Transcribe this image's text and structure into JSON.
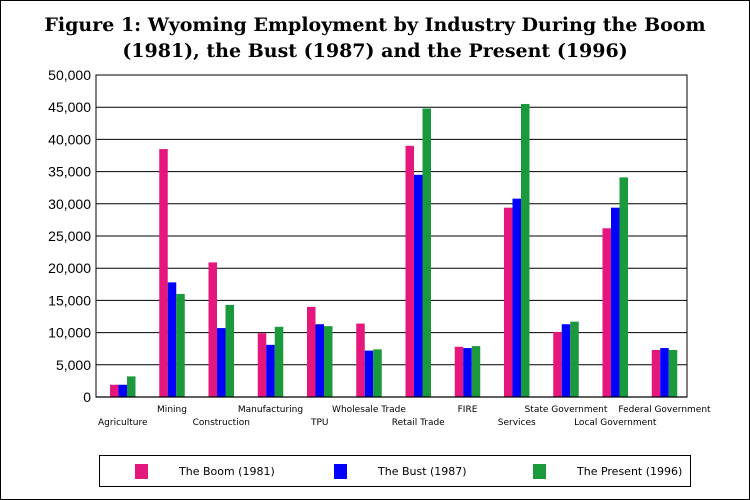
{
  "title": {
    "line1": "Figure 1:  Wyoming Employment by Industry During the Boom",
    "line2": "(1981), the Bust (1987) and the Present (1996)"
  },
  "chart_data": {
    "type": "bar",
    "title": "Figure 1:  Wyoming Employment by Industry During the Boom (1981), the Bust (1987) and the Present (1996)",
    "categories": [
      "Agriculture",
      "Mining",
      "Construction",
      "Manufacturing",
      "TPU",
      "Wholesale Trade",
      "Retail Trade",
      "FIRE",
      "Services",
      "State Government",
      "Local Government",
      "Federal Government"
    ],
    "series": [
      {
        "name": "The Boom (1981)",
        "color": "#E5177D",
        "values": [
          1900,
          38500,
          20900,
          9900,
          14000,
          11400,
          39000,
          7800,
          29400,
          10100,
          26200,
          7300
        ]
      },
      {
        "name": "The Bust (1987)",
        "color": "#0000FF",
        "values": [
          1900,
          17800,
          10700,
          8100,
          11300,
          7200,
          34500,
          7600,
          30800,
          11300,
          29400,
          7600
        ]
      },
      {
        "name": "The Present (1996)",
        "color": "#1A9A3D",
        "values": [
          3200,
          16000,
          14300,
          10900,
          11000,
          7400,
          44800,
          7900,
          45500,
          11700,
          34100,
          7300
        ]
      }
    ],
    "yticks": [
      "0",
      "5,000",
      "10,000",
      "15,000",
      "20,000",
      "25,000",
      "30,000",
      "35,000",
      "40,000",
      "45,000",
      "50,000"
    ],
    "ylim": [
      0,
      50000
    ],
    "grid": true,
    "legend_position": "bottom"
  }
}
